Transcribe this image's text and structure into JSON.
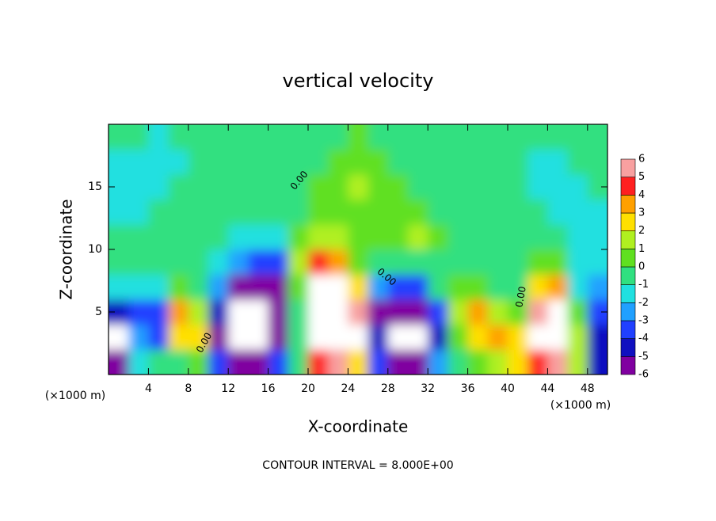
{
  "chart_data": {
    "type": "heatmap",
    "title": "vertical velocity",
    "x_label": "X-coordinate",
    "y_label": "Z-coordinate",
    "x_unit_label": "(×1000 m)",
    "note": "CONTOUR INTERVAL = 8.000E+00",
    "contour_labels": [
      "0.00",
      "0.00",
      "0.00",
      "0.00"
    ],
    "x": [
      1,
      3,
      5,
      7,
      9,
      11,
      13,
      15,
      17,
      19,
      21,
      23,
      25,
      27,
      29,
      31,
      33,
      35,
      37,
      39,
      41,
      43,
      45,
      47,
      49
    ],
    "y": [
      1,
      3,
      5,
      7,
      9,
      11,
      13,
      15,
      17,
      19
    ],
    "values": [
      [
        -5,
        -1,
        0,
        0,
        1,
        -3,
        -5,
        -6,
        -3,
        0,
        5,
        6,
        3,
        -3,
        -5,
        -6,
        -2,
        0,
        1,
        2,
        3,
        5,
        6,
        2,
        -4
      ],
      [
        -8,
        -2,
        -3,
        3,
        3,
        -5,
        -8,
        -9,
        -5,
        0,
        12,
        14,
        8,
        -4,
        -8,
        -9,
        -4,
        1,
        3,
        4,
        3,
        7,
        9,
        2,
        -4
      ],
      [
        -4,
        -3,
        -3,
        4,
        2,
        -4,
        -8,
        -9,
        -6,
        0,
        14,
        14,
        6,
        -5,
        -6,
        -6,
        -3,
        2,
        4,
        2,
        1,
        6,
        8,
        1,
        -3
      ],
      [
        -1,
        -1,
        -1,
        1,
        0,
        -2,
        -5,
        -6,
        -5,
        1,
        8,
        7,
        3,
        -2,
        -3,
        -3,
        0,
        1,
        1,
        0,
        0,
        3,
        4,
        -1,
        -2
      ],
      [
        0,
        0,
        0,
        0,
        0,
        -1,
        -2,
        -3,
        -3,
        2,
        5,
        4,
        1,
        0,
        0,
        0,
        0,
        0,
        0,
        0,
        0,
        1,
        1,
        -1,
        -1
      ],
      [
        0,
        0,
        0,
        0,
        0,
        0,
        -1,
        -1,
        -1,
        1,
        2,
        2,
        1,
        1,
        1,
        2,
        1,
        0,
        0,
        0,
        0,
        0,
        0,
        -1,
        -1
      ],
      [
        -1,
        -1,
        0,
        0,
        0,
        0,
        0,
        0,
        0,
        0,
        1,
        1,
        1,
        1,
        1,
        1,
        0,
        0,
        0,
        0,
        0,
        0,
        -1,
        -1,
        -1
      ],
      [
        -1,
        -1,
        -1,
        0,
        0,
        0,
        0,
        0,
        0,
        0,
        1,
        1,
        2,
        1,
        1,
        0,
        0,
        0,
        0,
        0,
        0,
        -1,
        -1,
        -1,
        0
      ],
      [
        -1,
        -1,
        -1,
        -1,
        0,
        0,
        0,
        0,
        0,
        0,
        0,
        1,
        1,
        1,
        0,
        0,
        0,
        0,
        0,
        0,
        0,
        -1,
        -1,
        0,
        0
      ],
      [
        0,
        0,
        -1,
        0,
        0,
        0,
        0,
        0,
        0,
        0,
        0,
        0,
        1,
        0,
        0,
        0,
        0,
        0,
        0,
        0,
        0,
        0,
        0,
        0,
        0
      ]
    ],
    "xlim": [
      0,
      50
    ],
    "ylim": [
      0,
      20
    ],
    "xticks": [
      4,
      8,
      12,
      16,
      20,
      24,
      28,
      32,
      36,
      40,
      44,
      48
    ],
    "yticks": [
      5,
      10,
      15
    ],
    "levels": [
      -6,
      -5,
      -4,
      -3,
      -2,
      -1,
      0,
      1,
      2,
      3,
      4,
      5,
      6
    ],
    "colors": [
      "#8000a0",
      "#1010c0",
      "#2040ff",
      "#20a0ff",
      "#20e0e0",
      "#30e080",
      "#60e020",
      "#b0f020",
      "#ffe000",
      "#ffa000",
      "#ff2020",
      "#f8a0a0"
    ],
    "out_of_range_color": "#ffffff"
  }
}
